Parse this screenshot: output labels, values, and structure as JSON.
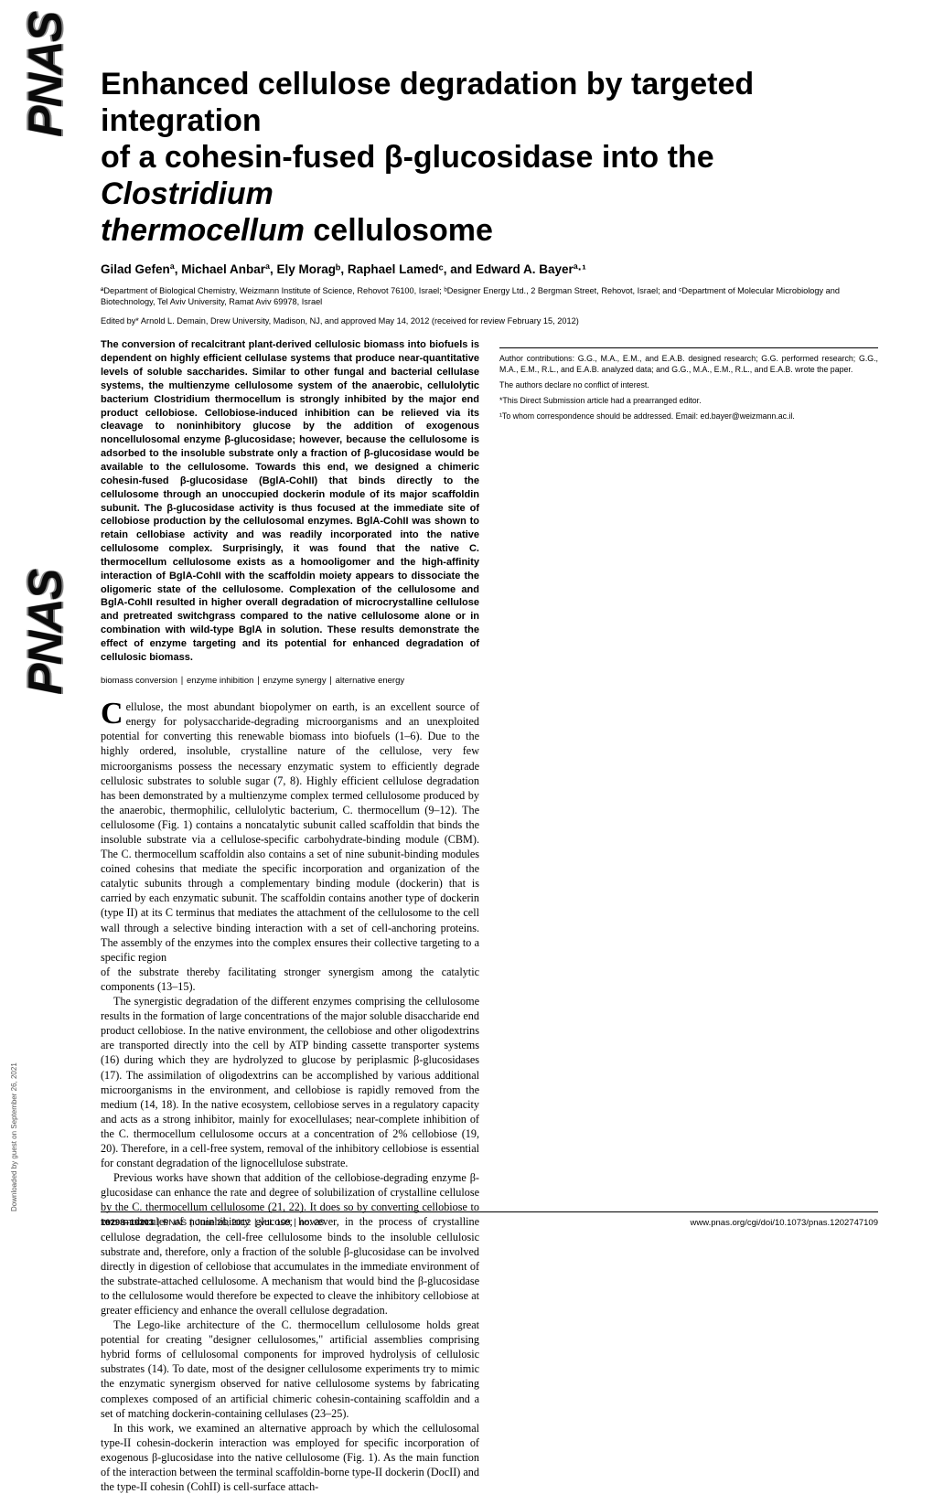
{
  "sidebar": {
    "logo_text": "PNAS",
    "download_note": "Downloaded by guest on September 26, 2021"
  },
  "paper": {
    "title_line1": "Enhanced cellulose degradation by targeted integration",
    "title_line2_pre": "of a cohesin-fused β-glucosidase into the ",
    "title_line2_italic": "Clostridium",
    "title_line3_italic": "thermocellum",
    "title_line3_post": " cellulosome",
    "authors_html": "Gilad Gefenª, Michael Anbarª, Ely Moragᵇ, Raphael Lamedᶜ, and Edward A. Bayerª·¹",
    "affiliations": "ªDepartment of Biological Chemistry, Weizmann Institute of Science, Rehovot 76100, Israel; ᵇDesigner Energy Ltd., 2 Bergman Street, Rehovot, Israel; and ᶜDepartment of Molecular Microbiology and Biotechnology, Tel Aviv University, Ramat Aviv 69978, Israel",
    "edited_by": "Edited by* Arnold L. Demain, Drew University, Madison, NJ, and approved May 14, 2012 (received for review February 15, 2012)"
  },
  "abstract": "The conversion of recalcitrant plant-derived cellulosic biomass into biofuels is dependent on highly efficient cellulase systems that produce near-quantitative levels of soluble saccharides. Similar to other fungal and bacterial cellulase systems, the multienzyme cellulosome system of the anaerobic, cellulolytic bacterium Clostridium thermocellum is strongly inhibited by the major end product cellobiose. Cellobiose-induced inhibition can be relieved via its cleavage to noninhibitory glucose by the addition of exogenous noncellulosomal enzyme β-glucosidase; however, because the cellulosome is adsorbed to the insoluble substrate only a fraction of β-glucosidase would be available to the cellulosome. Towards this end, we designed a chimeric cohesin-fused β-glucosidase (BglA-CohII) that binds directly to the cellulosome through an unoccupied dockerin module of its major scaffoldin subunit. The β-glucosidase activity is thus focused at the immediate site of cellobiose production by the cellulosomal enzymes. BglA-CohII was shown to retain cellobiase activity and was readily incorporated into the native cellulosome complex. Surprisingly, it was found that the native C. thermocellum cellulosome exists as a homooligomer and the high-affinity interaction of BglA-CohII with the scaffoldin moiety appears to dissociate the oligomeric state of the cellulosome. Complexation of the cellulosome and BglA-CohII resulted in higher overall degradation of microcrystalline cellulose and pretreated switchgrass compared to the native cellulosome alone or in combination with wild-type BglA in solution. These results demonstrate the effect of enzyme targeting and its potential for enhanced degradation of cellulosic biomass.",
  "keywords": "biomass conversion ∣ enzyme inhibition ∣ enzyme synergy ∣ alternative energy",
  "body": {
    "p1_dropcap": "C",
    "p1": "ellulose, the most abundant biopolymer on earth, is an excellent source of energy for polysaccharide-degrading microorganisms and an unexploited potential for converting this renewable biomass into biofuels (1–6). Due to the highly ordered, insoluble, crystalline nature of the cellulose, very few microorganisms possess the necessary enzymatic system to efficiently degrade cellulosic substrates to soluble sugar (7, 8). Highly efficient cellulose degradation has been demonstrated by a multienzyme complex termed cellulosome produced by the anaerobic, thermophilic, cellulolytic bacterium, C. thermocellum (9–12). The cellulosome (Fig. 1) contains a noncatalytic subunit called scaffoldin that binds the insoluble substrate via a cellulose-specific carbohydrate-binding module (CBM). The C. thermocellum scaffoldin also contains a set of nine subunit-binding modules coined cohesins that mediate the specific incorporation and organization of the catalytic subunits through a complementary binding module (dockerin) that is carried by each enzymatic subunit. The scaffoldin contains another type of dockerin (type II) at its C terminus that mediates the attachment of the cellulosome to the cell wall through a selective binding interaction with a set of cell-anchoring proteins. The assembly of the enzymes into the complex ensures their collective targeting to a specific region",
    "p2": "of the substrate thereby facilitating stronger synergism among the catalytic components (13–15).",
    "p3": "The synergistic degradation of the different enzymes comprising the cellulosome results in the formation of large concentrations of the major soluble disaccharide end product cellobiose. In the native environment, the cellobiose and other oligodextrins are transported directly into the cell by ATP binding cassette transporter systems (16) during which they are hydrolyzed to glucose by periplasmic β-glucosidases (17). The assimilation of oligodextrins can be accomplished by various additional microorganisms in the environment, and cellobiose is rapidly removed from the medium (14, 18). In the native ecosystem, cellobiose serves in a regulatory capacity and acts as a strong inhibitor, mainly for exocellulases; near-complete inhibition of the C. thermocellum cellulosome occurs at a concentration of 2% cellobiose (19, 20). Therefore, in a cell-free system, removal of the inhibitory cellobiose is essential for constant degradation of the lignocellulose substrate.",
    "p4": "Previous works have shown that addition of the cellobiose-degrading enzyme β-glucosidase can enhance the rate and degree of solubilization of crystalline cellulose by the C. thermocellum cellulosome (21, 22). It does so by converting cellobiose to two molecules of noninhibitory glucose; however, in the process of crystalline cellulose degradation, the cell-free cellulosome binds to the insoluble cellulosic substrate and, therefore, only a fraction of the soluble β-glucosidase can be involved directly in digestion of cellobiose that accumulates in the immediate environment of the substrate-attached cellulosome. A mechanism that would bind the β-glucosidase to the cellulosome would therefore be expected to cleave the inhibitory cellobiose at greater efficiency and enhance the overall cellulose degradation.",
    "p5": "The Lego-like architecture of the C. thermocellum cellulosome holds great potential for creating \"designer cellulosomes,\" artificial assemblies comprising hybrid forms of cellulosomal components for improved hydrolysis of cellulosic substrates (14). To date, most of the designer cellulosome experiments try to mimic the enzymatic synergism observed for native cellulosome systems by fabricating complexes composed of an artificial chimeric cohesin-containing scaffoldin and a set of matching dockerin-containing cellulases (23–25).",
    "p6": "In this work, we examined an alternative approach by which the cellulosomal type-II cohesin-dockerin interaction was employed for specific incorporation of exogenous β-glucosidase into the native cellulosome (Fig. 1). As the main function of the interaction between the terminal scaffoldin-borne type-II dockerin (DocII) and the type-II cohesin (CohII) is cell-surface attach-"
  },
  "footnotes": {
    "contrib": "Author contributions: G.G., M.A., E.M., and E.A.B. designed research; G.G. performed research; G.G., M.A., E.M., R.L., and E.A.B. analyzed data; and G.G., M.A., E.M., R.L., and E.A.B. wrote the paper.",
    "conflict": "The authors declare no conflict of interest.",
    "editor": "*This Direct Submission article had a prearranged editor.",
    "corr": "¹To whom correspondence should be addressed. Email: ed.bayer@weizmann.ac.il."
  },
  "footer": {
    "left_pages": "10298–10303",
    "left_sep": " ∣ ",
    "left_journal": "PNAS",
    "left_date": "June 26, 2012",
    "left_vol": "vol. 109",
    "left_issue": "no. 26",
    "right_url": "www.pnas.org/cgi/doi/10.1073/pnas.1202747109"
  }
}
